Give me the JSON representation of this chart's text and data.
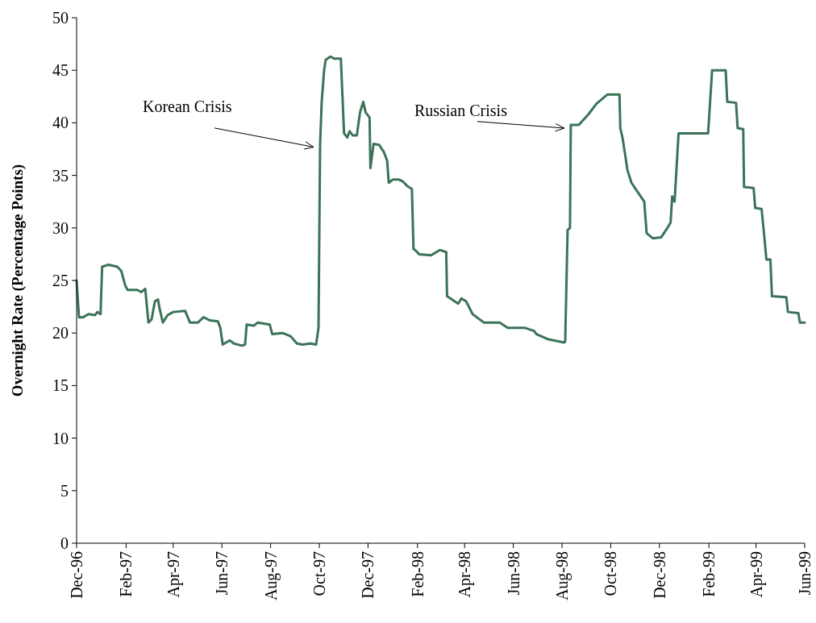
{
  "chart_data": {
    "type": "line",
    "ylabel": "Overnight Rate (Percentage Points)",
    "x": [
      "1996-12-01",
      "1996-12-04",
      "1996-12-09",
      "1996-12-16",
      "1996-12-24",
      "1996-12-27",
      "1996-12-31",
      "1997-01-02",
      "1997-01-10",
      "1997-01-21",
      "1997-01-26",
      "1997-01-31",
      "1997-02-03",
      "1997-02-15",
      "1997-02-20",
      "1997-02-25",
      "1997-03-01",
      "1997-03-05",
      "1997-03-09",
      "1997-03-13",
      "1997-03-15",
      "1997-03-19",
      "1997-03-25",
      "1997-04-01",
      "1997-04-16",
      "1997-04-22",
      "1997-05-02",
      "1997-05-09",
      "1997-05-17",
      "1997-05-27",
      "1997-05-30",
      "1997-06-02",
      "1997-06-11",
      "1997-06-16",
      "1997-06-26",
      "1997-06-30",
      "1997-07-02",
      "1997-07-11",
      "1997-07-16",
      "1997-07-31",
      "1997-08-03",
      "1997-08-16",
      "1997-08-26",
      "1997-09-03",
      "1997-09-10",
      "1997-09-20",
      "1997-09-27",
      "1997-09-30",
      "1997-10-02",
      "1997-10-04",
      "1997-10-07",
      "1997-10-09",
      "1997-10-15",
      "1997-10-20",
      "1997-10-28",
      "1997-11-01",
      "1997-11-05",
      "1997-11-08",
      "1997-11-12",
      "1997-11-17",
      "1997-11-21",
      "1997-11-25",
      "1997-11-28",
      "1997-12-03",
      "1997-12-04",
      "1997-12-08",
      "1997-12-15",
      "1997-12-21",
      "1997-12-25",
      "1997-12-27",
      "1998-01-01",
      "1998-01-09",
      "1998-01-14",
      "1998-01-19",
      "1998-01-25",
      "1998-01-27",
      "1998-01-29",
      "1998-02-03",
      "1998-02-18",
      "1998-03-01",
      "1998-03-09",
      "1998-03-10",
      "1998-03-16",
      "1998-03-24",
      "1998-03-28",
      "1998-04-03",
      "1998-04-11",
      "1998-04-25",
      "1998-05-15",
      "1998-05-25",
      "1998-06-15",
      "1998-06-27",
      "1998-06-30",
      "1998-07-15",
      "1998-08-04",
      "1998-08-05",
      "1998-08-08",
      "1998-08-11",
      "1998-08-12",
      "1998-08-22",
      "1998-09-03",
      "1998-09-13",
      "1998-09-27",
      "1998-10-12",
      "1998-10-13",
      "1998-10-16",
      "1998-10-20",
      "1998-10-22",
      "1998-10-27",
      "1998-11-03",
      "1998-11-12",
      "1998-11-15",
      "1998-11-23",
      "1998-12-03",
      "1998-12-11",
      "1998-12-15",
      "1998-12-17",
      "1998-12-20",
      "1998-12-25",
      "1999-01-18",
      "1999-01-31",
      "1999-02-05",
      "1999-02-22",
      "1999-02-24",
      "1999-03-07",
      "1999-03-09",
      "1999-03-16",
      "1999-03-17",
      "1999-03-29",
      "1999-03-31",
      "1999-04-08",
      "1999-04-11",
      "1999-04-14",
      "1999-04-19",
      "1999-04-21",
      "1999-05-09",
      "1999-05-11",
      "1999-05-24",
      "1999-05-26",
      "1999-06-01"
    ],
    "series": [
      {
        "color": "#3b7358",
        "values": [
          25.0,
          21.5,
          21.5,
          21.8,
          21.7,
          22.0,
          21.8,
          26.3,
          26.5,
          26.3,
          25.9,
          24.5,
          24.1,
          24.1,
          23.9,
          24.2,
          21.0,
          21.3,
          23.0,
          23.2,
          22.3,
          21.0,
          21.7,
          22.0,
          22.1,
          21.0,
          21.0,
          21.5,
          21.2,
          21.1,
          20.5,
          18.9,
          19.3,
          19.0,
          18.8,
          18.9,
          20.8,
          20.7,
          21.0,
          20.8,
          19.9,
          20.0,
          19.7,
          19.0,
          18.9,
          19.0,
          18.9,
          20.5,
          38.0,
          42.0,
          45.0,
          46.0,
          46.3,
          46.1,
          46.1,
          39.0,
          38.6,
          39.2,
          38.8,
          38.8,
          41.0,
          42.0,
          41.0,
          40.5,
          35.7,
          38.0,
          37.9,
          37.2,
          36.4,
          34.3,
          34.6,
          34.6,
          34.4,
          34.0,
          33.7,
          28.0,
          27.9,
          27.5,
          27.4,
          27.9,
          27.7,
          23.5,
          23.2,
          22.8,
          23.3,
          23.0,
          21.8,
          21.0,
          21.0,
          20.5,
          20.5,
          20.2,
          19.9,
          19.4,
          19.1,
          19.2,
          29.8,
          30.0,
          39.8,
          39.8,
          40.8,
          41.8,
          42.7,
          42.7,
          39.5,
          38.5,
          36.5,
          35.5,
          34.3,
          33.5,
          32.5,
          29.5,
          29.0,
          29.1,
          30.0,
          30.5,
          33.0,
          32.5,
          39.0,
          39.0,
          39.0,
          45.0,
          45.0,
          42.0,
          41.9,
          39.5,
          39.4,
          33.9,
          33.8,
          31.9,
          31.8,
          29.5,
          27.0,
          27.0,
          23.5,
          23.4,
          22.0,
          21.9,
          21.0,
          21.0
        ]
      }
    ],
    "xlim": [
      "1996-12-01",
      "1999-06-01"
    ],
    "xticks": [
      {
        "value": "1996-12-01",
        "label": "Dec-96"
      },
      {
        "value": "1997-02-01",
        "label": "Feb-97"
      },
      {
        "value": "1997-04-01",
        "label": "Apr-97"
      },
      {
        "value": "1997-06-01",
        "label": "Jun-97"
      },
      {
        "value": "1997-08-01",
        "label": "Aug-97"
      },
      {
        "value": "1997-10-01",
        "label": "Oct-97"
      },
      {
        "value": "1997-12-01",
        "label": "Dec-97"
      },
      {
        "value": "1998-02-01",
        "label": "Feb-98"
      },
      {
        "value": "1998-04-01",
        "label": "Apr-98"
      },
      {
        "value": "1998-06-01",
        "label": "Jun-98"
      },
      {
        "value": "1998-08-01",
        "label": "Aug-98"
      },
      {
        "value": "1998-10-01",
        "label": "Oct-98"
      },
      {
        "value": "1998-12-01",
        "label": "Dec-98"
      },
      {
        "value": "1999-02-01",
        "label": "Feb-99"
      },
      {
        "value": "1999-04-01",
        "label": "Apr-99"
      },
      {
        "value": "1999-06-01",
        "label": "Jun-99"
      }
    ],
    "ylim": [
      0,
      50
    ],
    "yticks": [
      0,
      5,
      10,
      15,
      20,
      25,
      30,
      35,
      40,
      45,
      50
    ],
    "annotations": [
      {
        "text": "Korean Crisis",
        "x": "1997-10-02",
        "y": 38.0
      },
      {
        "text": "Russian Crisis",
        "x": "1998-08-12",
        "y": 39.8
      }
    ],
    "grid": false,
    "marker": "none",
    "line_style": "solid"
  }
}
